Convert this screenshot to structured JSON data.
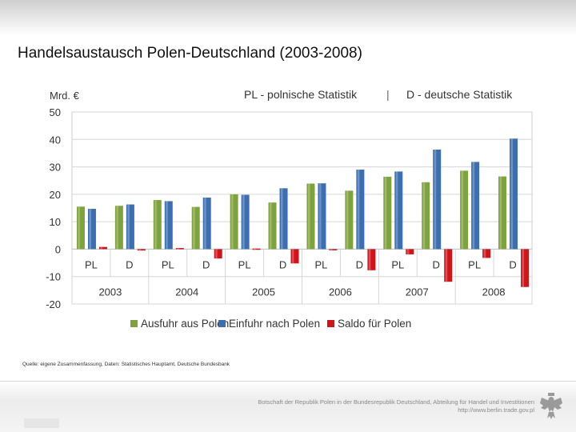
{
  "slide": {
    "title": "Handelsaustausch Polen-Deutschland (2003-2008)",
    "source": "Quelle: eigene Zusammenfassung, Daten: Statistisches Hauptamt, Deutsche Bundesbank"
  },
  "chart_data": {
    "type": "bar",
    "ylabel": "Mrd. €",
    "ylim": [
      -20,
      50
    ],
    "yticks": [
      50,
      40,
      30,
      20,
      10,
      0,
      -10,
      -20
    ],
    "grid": true,
    "header_left": "PL - polnische Statistik",
    "header_separator": "|",
    "header_right": "D - deutsche Statistik",
    "legend_position": "bottom",
    "groups": [
      {
        "year": "2003",
        "sources": [
          {
            "label": "PL",
            "values": [
              15.5,
              14.7,
              0.8
            ]
          },
          {
            "label": "D",
            "values": [
              15.8,
              16.3,
              -0.5
            ]
          }
        ]
      },
      {
        "year": "2004",
        "sources": [
          {
            "label": "PL",
            "values": [
              17.9,
              17.5,
              0.4
            ]
          },
          {
            "label": "D",
            "values": [
              15.4,
              18.8,
              -3.4
            ]
          }
        ]
      },
      {
        "year": "2005",
        "sources": [
          {
            "label": "PL",
            "values": [
              20.0,
              19.8,
              0.2
            ]
          },
          {
            "label": "D",
            "values": [
              17.0,
              22.2,
              -5.2
            ]
          }
        ]
      },
      {
        "year": "2006",
        "sources": [
          {
            "label": "PL",
            "values": [
              23.9,
              24.0,
              -0.1
            ]
          },
          {
            "label": "D",
            "values": [
              21.3,
              29.0,
              -7.7
            ]
          }
        ]
      },
      {
        "year": "2007",
        "sources": [
          {
            "label": "PL",
            "values": [
              26.4,
              28.3,
              -1.9
            ]
          },
          {
            "label": "D",
            "values": [
              24.4,
              36.3,
              -11.9
            ]
          }
        ]
      },
      {
        "year": "2008",
        "sources": [
          {
            "label": "PL",
            "values": [
              28.6,
              31.8,
              -3.2
            ]
          },
          {
            "label": "D",
            "values": [
              26.5,
              40.3,
              -13.8
            ]
          }
        ]
      }
    ],
    "series": [
      {
        "name": "Ausfuhr aus Polen",
        "color": "#7ea23c"
      },
      {
        "name": "Einfuhr nach Polen",
        "color": "#3d6fb0"
      },
      {
        "name": "Saldo für Polen",
        "color": "#d0141a"
      }
    ]
  },
  "footer": {
    "line1": "Botschaft der Republik Polen in der Bundesrepublik Deutschland, Abteilung für Handel und Investitionen",
    "line2": "http://www.berlin.trade.gov.pl"
  }
}
